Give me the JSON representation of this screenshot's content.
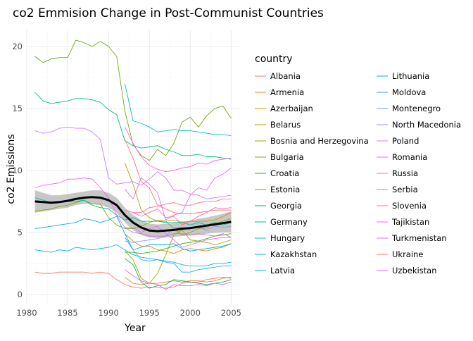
{
  "chart_data": {
    "type": "line",
    "title": "co2 Emmision Change in Post-Communist Countries",
    "xlabel": "Year",
    "ylabel": "co2 Emissions",
    "xlim": [
      1980,
      2006
    ],
    "ylim": [
      -0.8,
      21.3
    ],
    "x_ticks": [
      "1980",
      "1985",
      "1990",
      "1995",
      "2000",
      "2005"
    ],
    "y_ticks": [
      "0",
      "5",
      "10",
      "15",
      "20"
    ],
    "grid": true,
    "legend_title": "country",
    "legend_position": "right",
    "x": [
      1981,
      1982,
      1983,
      1984,
      1985,
      1986,
      1987,
      1988,
      1989,
      1990,
      1991,
      1992,
      1993,
      1994,
      1995,
      1996,
      1997,
      1998,
      1999,
      2000,
      2001,
      2002,
      2003,
      2004,
      2005
    ],
    "series": [
      {
        "name": "Albania",
        "color": "#F8766D",
        "values": [
          1.8,
          1.7,
          1.7,
          1.8,
          1.8,
          1.8,
          1.8,
          1.7,
          1.8,
          1.7,
          1.2,
          0.8,
          0.6,
          0.5,
          0.6,
          0.6,
          0.5,
          0.6,
          0.9,
          1.0,
          1.0,
          1.2,
          1.3,
          1.4,
          1.3
        ]
      },
      {
        "name": "Armenia",
        "color": "#EA8331",
        "values": [
          null,
          null,
          null,
          null,
          null,
          null,
          null,
          null,
          null,
          null,
          null,
          1.4,
          0.9,
          0.8,
          0.9,
          0.9,
          1.0,
          1.1,
          1.0,
          1.1,
          1.1,
          1.0,
          1.1,
          1.3,
          1.4
        ]
      },
      {
        "name": "Azerbaijan",
        "color": "#D89000",
        "values": [
          null,
          null,
          null,
          null,
          null,
          null,
          null,
          null,
          null,
          null,
          null,
          4.9,
          4.3,
          3.9,
          3.9,
          3.6,
          3.5,
          3.3,
          3.6,
          3.7,
          3.6,
          3.5,
          3.7,
          3.8,
          4.1
        ]
      },
      {
        "name": "Belarus",
        "color": "#C09B00",
        "values": [
          null,
          null,
          null,
          null,
          null,
          null,
          null,
          null,
          null,
          null,
          null,
          10.6,
          8.9,
          6.8,
          6.2,
          5.9,
          5.9,
          6.0,
          5.8,
          5.9,
          5.9,
          5.9,
          6.0,
          6.3,
          6.6
        ]
      },
      {
        "name": "Bosnia and Herzegovina",
        "color": "#A3A500",
        "values": [
          null,
          null,
          null,
          null,
          null,
          null,
          null,
          null,
          null,
          null,
          null,
          3.5,
          2.8,
          1.3,
          0.9,
          1.7,
          3.2,
          4.8,
          5.2,
          4.4,
          4.3,
          4.2,
          4.0,
          4.2,
          4.4
        ]
      },
      {
        "name": "Bulgaria",
        "color": "#7CAE00",
        "values": [
          6.7,
          6.8,
          6.9,
          7.1,
          7.2,
          7.4,
          7.6,
          7.3,
          7.3,
          6.2,
          5.6,
          5.3,
          5.3,
          5.5,
          5.8,
          6.0,
          5.9,
          5.3,
          4.8,
          5.0,
          5.3,
          5.4,
          5.7,
          5.9,
          6.1
        ]
      },
      {
        "name": "Croatia",
        "color": "#39B600",
        "values": [
          null,
          null,
          null,
          null,
          null,
          null,
          null,
          null,
          null,
          null,
          null,
          3.4,
          3.4,
          3.3,
          3.4,
          3.5,
          3.7,
          3.9,
          4.1,
          4.2,
          4.3,
          4.5,
          4.7,
          4.8,
          4.9
        ]
      },
      {
        "name": "Estonia",
        "color": "#6FAA0E",
        "values": [
          19.2,
          18.7,
          19.0,
          19.1,
          19.1,
          20.5,
          20.3,
          20.0,
          20.4,
          20.0,
          19.2,
          14.8,
          12.1,
          11.2,
          10.8,
          11.7,
          11.2,
          12.2,
          13.9,
          14.3,
          13.5,
          14.4,
          15.0,
          15.2,
          14.2
        ]
      },
      {
        "name": "Georgia",
        "color": "#00BB4E",
        "values": [
          null,
          null,
          null,
          null,
          null,
          null,
          null,
          null,
          null,
          null,
          null,
          2.9,
          2.4,
          1.0,
          0.5,
          0.7,
          0.8,
          1.2,
          1.1,
          1.0,
          0.9,
          0.8,
          0.9,
          1.0,
          1.2
        ]
      },
      {
        "name": "Germany",
        "color": "#00BF7D",
        "values": [
          16.3,
          15.6,
          15.4,
          15.5,
          15.6,
          15.8,
          15.8,
          15.7,
          15.5,
          14.9,
          14.5,
          12.4,
          12.0,
          11.8,
          11.9,
          12.0,
          11.7,
          11.5,
          11.2,
          11.2,
          11.3,
          11.1,
          11.1,
          11.0,
          10.9
        ]
      },
      {
        "name": "Hungary",
        "color": "#00C1A3",
        "values": [
          7.8,
          7.6,
          7.4,
          7.4,
          7.5,
          7.5,
          7.6,
          7.2,
          7.0,
          6.9,
          6.4,
          6.0,
          6.2,
          5.9,
          5.9,
          5.9,
          5.8,
          5.8,
          5.8,
          5.6,
          5.8,
          5.6,
          5.8,
          5.6,
          5.8
        ]
      },
      {
        "name": "Kazakhstan",
        "color": "#00BFC4",
        "values": [
          null,
          null,
          null,
          null,
          null,
          null,
          null,
          null,
          null,
          null,
          null,
          17.0,
          14.0,
          13.8,
          13.5,
          13.1,
          13.2,
          13.3,
          13.2,
          13.2,
          13.1,
          13.0,
          12.9,
          12.9,
          12.8
        ]
      },
      {
        "name": "Latvia",
        "color": "#00B8E7",
        "values": [
          3.6,
          3.5,
          3.4,
          3.6,
          3.5,
          3.8,
          3.7,
          3.6,
          3.7,
          3.8,
          4.0,
          3.6,
          3.2,
          3.0,
          2.9,
          2.8,
          2.7,
          2.6,
          2.4,
          2.3,
          2.3,
          2.3,
          2.5,
          2.5,
          2.6
        ]
      },
      {
        "name": "Lithuania",
        "color": "#00A9FF",
        "values": [
          5.3,
          5.4,
          5.5,
          5.6,
          5.7,
          5.8,
          6.1,
          6.0,
          5.8,
          6.0,
          6.3,
          4.9,
          3.6,
          3.8,
          4.0,
          4.0,
          4.0,
          4.1,
          3.7,
          3.5,
          3.6,
          3.7,
          3.8,
          3.9,
          4.1
        ]
      },
      {
        "name": "Moldova",
        "color": "#35A2FF",
        "values": [
          null,
          null,
          null,
          null,
          null,
          null,
          null,
          null,
          null,
          null,
          null,
          4.6,
          3.6,
          2.8,
          2.7,
          2.8,
          2.6,
          2.5,
          1.8,
          1.8,
          2.0,
          2.1,
          2.2,
          2.3,
          2.3
        ]
      },
      {
        "name": "Montenegro",
        "color": "#619CFF",
        "values": [
          null,
          null,
          null,
          null,
          null,
          null,
          null,
          null,
          null,
          null,
          null,
          null,
          null,
          null,
          null,
          null,
          null,
          null,
          null,
          null,
          null,
          null,
          null,
          null,
          3.4
        ]
      },
      {
        "name": "North Macedonia",
        "color": "#9590FF",
        "values": [
          null,
          null,
          null,
          null,
          null,
          null,
          null,
          null,
          null,
          null,
          null,
          4.3,
          4.2,
          4.3,
          4.4,
          4.5,
          4.7,
          5.4,
          5.4,
          5.3,
          5.4,
          5.2,
          5.5,
          5.4,
          5.5
        ]
      },
      {
        "name": "Poland",
        "color": "#C77CFF",
        "values": [
          13.2,
          13.0,
          13.1,
          13.4,
          13.5,
          13.4,
          13.4,
          13.1,
          12.5,
          9.4,
          8.9,
          9.0,
          9.1,
          8.8,
          9.3,
          9.9,
          9.4,
          8.4,
          8.4,
          8.1,
          8.0,
          7.7,
          7.8,
          7.9,
          8.0
        ]
      },
      {
        "name": "Romania",
        "color": "#E76BF3",
        "values": [
          8.6,
          8.8,
          8.9,
          9.0,
          9.3,
          9.3,
          9.4,
          9.3,
          8.6,
          7.8,
          6.4,
          5.4,
          5.4,
          5.0,
          5.3,
          5.5,
          4.9,
          4.4,
          3.8,
          4.0,
          4.2,
          4.4,
          4.5,
          4.6,
          4.6
        ]
      },
      {
        "name": "Russia",
        "color": "#FA62DB",
        "values": [
          null,
          null,
          null,
          null,
          null,
          null,
          null,
          null,
          null,
          null,
          null,
          13.5,
          12.2,
          11.1,
          10.4,
          10.1,
          9.9,
          10.0,
          10.2,
          10.3,
          10.6,
          10.5,
          10.8,
          10.9,
          11.0
        ]
      },
      {
        "name": "Serbia",
        "color": "#FF62BC",
        "values": [
          null,
          null,
          null,
          null,
          null,
          null,
          null,
          null,
          null,
          null,
          null,
          null,
          6.6,
          6.3,
          6.6,
          6.9,
          6.2,
          6.3,
          5.6,
          5.9,
          6.3,
          6.6,
          7.0,
          6.9,
          7.0
        ]
      },
      {
        "name": "Slovenia",
        "color": "#FF6C91",
        "values": [
          null,
          null,
          null,
          null,
          null,
          null,
          null,
          null,
          null,
          null,
          null,
          6.8,
          6.6,
          6.6,
          7.0,
          7.1,
          7.3,
          7.4,
          7.2,
          7.2,
          7.4,
          7.5,
          7.5,
          7.7,
          7.7
        ]
      },
      {
        "name": "Tajikistan",
        "color": "#F564E3",
        "values": [
          null,
          null,
          null,
          null,
          null,
          null,
          null,
          null,
          null,
          null,
          null,
          2.0,
          1.5,
          1.1,
          0.9,
          0.8,
          0.4,
          0.8,
          0.7,
          0.7,
          0.8,
          0.7,
          0.9,
          0.8,
          1.0
        ]
      },
      {
        "name": "Turkmenistan",
        "color": "#E36EF6",
        "values": [
          null,
          null,
          null,
          null,
          null,
          null,
          null,
          null,
          null,
          null,
          null,
          8.5,
          7.7,
          9.4,
          8.9,
          8.2,
          6.0,
          6.4,
          6.6,
          8.0,
          8.6,
          8.4,
          9.4,
          9.7,
          10.2
        ]
      },
      {
        "name": "Ukraine",
        "color": "#FF7078",
        "values": [
          null,
          null,
          null,
          null,
          null,
          null,
          null,
          null,
          null,
          null,
          null,
          12.5,
          11.0,
          9.1,
          8.6,
          7.2,
          6.9,
          6.6,
          6.5,
          6.5,
          6.6,
          6.7,
          6.8,
          6.8,
          6.8
        ]
      },
      {
        "name": "Uzbekistan",
        "color": "#D16BE0",
        "values": [
          null,
          null,
          null,
          null,
          null,
          null,
          null,
          null,
          null,
          null,
          null,
          5.4,
          5.0,
          4.9,
          4.7,
          4.7,
          4.7,
          4.9,
          4.9,
          4.8,
          4.9,
          4.8,
          4.7,
          4.9,
          4.6
        ]
      }
    ],
    "trend": {
      "name": "mean",
      "color": "#000000",
      "values": [
        7.5,
        7.45,
        7.4,
        7.45,
        7.55,
        7.7,
        7.8,
        7.85,
        7.8,
        7.6,
        7.2,
        6.4,
        5.8,
        5.4,
        5.15,
        5.1,
        5.15,
        5.2,
        5.3,
        5.35,
        5.45,
        5.55,
        5.65,
        5.75,
        5.85
      ],
      "band_low": [
        6.6,
        6.7,
        6.8,
        6.9,
        7.0,
        7.2,
        7.3,
        7.3,
        7.2,
        7.0,
        6.6,
        5.8,
        5.2,
        4.8,
        4.6,
        4.55,
        4.6,
        4.65,
        4.7,
        4.75,
        4.8,
        4.9,
        4.95,
        5.0,
        5.0
      ],
      "band_high": [
        8.4,
        8.2,
        8.0,
        8.0,
        8.1,
        8.2,
        8.3,
        8.4,
        8.4,
        8.2,
        7.8,
        7.0,
        6.4,
        6.0,
        5.7,
        5.65,
        5.7,
        5.75,
        5.9,
        5.95,
        6.1,
        6.2,
        6.35,
        6.5,
        6.7
      ],
      "band_color": "#bdbdbd"
    }
  }
}
